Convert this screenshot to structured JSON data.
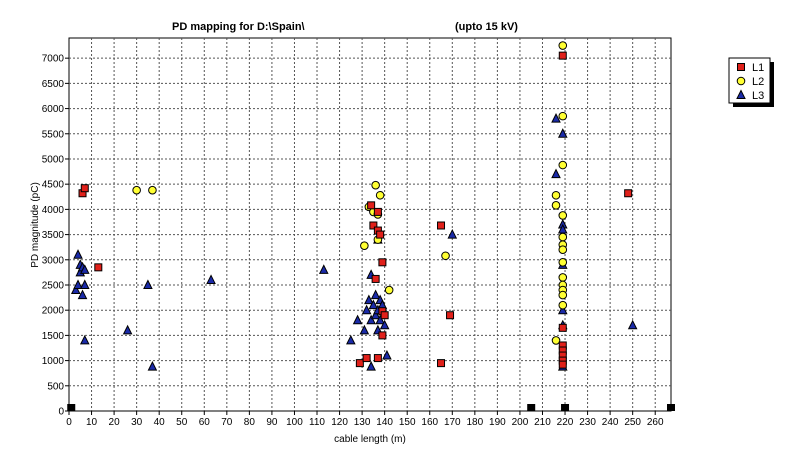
{
  "chart_data": {
    "type": "scatter",
    "title": "PD mapping for D:\\Spain\\",
    "subtitle": "(upto 15 kV)",
    "xlabel": "cable length (m)",
    "ylabel": "PD magnitude (pC)",
    "xlim": [
      0,
      267
    ],
    "ylim": [
      0,
      7400
    ],
    "xticks": [
      0,
      10,
      20,
      30,
      40,
      50,
      60,
      70,
      80,
      90,
      100,
      110,
      120,
      130,
      140,
      150,
      160,
      170,
      180,
      190,
      200,
      210,
      220,
      230,
      240,
      250,
      260
    ],
    "yticks": [
      0,
      500,
      1000,
      1500,
      2000,
      2500,
      3000,
      3500,
      4000,
      4500,
      5000,
      5500,
      6000,
      6500,
      7000
    ],
    "grid": true,
    "legend_position": "right",
    "colors": {
      "L1": "#e0201a",
      "L2": "#ffff33",
      "L3": "#1a2aa8",
      "position_markers": "#000000"
    },
    "series": [
      {
        "name": "L1",
        "marker": "square",
        "points": [
          [
            6,
            4320
          ],
          [
            7,
            4420
          ],
          [
            13,
            2850
          ],
          [
            129,
            950
          ],
          [
            132,
            1050
          ],
          [
            134,
            4080
          ],
          [
            135,
            3680
          ],
          [
            136,
            2620
          ],
          [
            137,
            1050
          ],
          [
            137,
            3950
          ],
          [
            137,
            3580
          ],
          [
            138,
            3500
          ],
          [
            139,
            2950
          ],
          [
            139,
            1980
          ],
          [
            139,
            1500
          ],
          [
            140,
            1900
          ],
          [
            165,
            3680
          ],
          [
            165,
            950
          ],
          [
            169,
            1900
          ],
          [
            219,
            7050
          ],
          [
            219,
            1650
          ],
          [
            219,
            1300
          ],
          [
            219,
            1200
          ],
          [
            219,
            1100
          ],
          [
            219,
            1000
          ],
          [
            219,
            920
          ],
          [
            248,
            4320
          ]
        ]
      },
      {
        "name": "L2",
        "marker": "circle",
        "points": [
          [
            30,
            4380
          ],
          [
            37,
            4380
          ],
          [
            131,
            3280
          ],
          [
            133,
            4050
          ],
          [
            135,
            3950
          ],
          [
            136,
            4480
          ],
          [
            137,
            3400
          ],
          [
            137,
            3900
          ],
          [
            138,
            4280
          ],
          [
            142,
            2400
          ],
          [
            167,
            3080
          ],
          [
            216,
            1400
          ],
          [
            216,
            4080
          ],
          [
            216,
            4280
          ],
          [
            219,
            7250
          ],
          [
            219,
            5850
          ],
          [
            219,
            4880
          ],
          [
            219,
            3880
          ],
          [
            219,
            3450
          ],
          [
            219,
            3300
          ],
          [
            219,
            3200
          ],
          [
            219,
            2950
          ],
          [
            219,
            2650
          ],
          [
            219,
            2500
          ],
          [
            219,
            2400
          ],
          [
            219,
            2300
          ],
          [
            219,
            2100
          ]
        ]
      },
      {
        "name": "L3",
        "marker": "triangle",
        "points": [
          [
            3,
            2400
          ],
          [
            4,
            2500
          ],
          [
            4,
            3100
          ],
          [
            5,
            2900
          ],
          [
            5,
            2750
          ],
          [
            6,
            2300
          ],
          [
            6,
            2850
          ],
          [
            7,
            2500
          ],
          [
            7,
            2800
          ],
          [
            7,
            1400
          ],
          [
            26,
            1600
          ],
          [
            35,
            2500
          ],
          [
            37,
            880
          ],
          [
            63,
            2600
          ],
          [
            113,
            2800
          ],
          [
            125,
            1400
          ],
          [
            128,
            1800
          ],
          [
            131,
            1600
          ],
          [
            132,
            2000
          ],
          [
            133,
            2200
          ],
          [
            134,
            880
          ],
          [
            134,
            2700
          ],
          [
            134,
            1800
          ],
          [
            135,
            2100
          ],
          [
            136,
            2300
          ],
          [
            136,
            1900
          ],
          [
            137,
            2000
          ],
          [
            137,
            1600
          ],
          [
            137,
            3400
          ],
          [
            138,
            2200
          ],
          [
            138,
            1800
          ],
          [
            139,
            2100
          ],
          [
            140,
            1700
          ],
          [
            141,
            1100
          ],
          [
            170,
            3500
          ],
          [
            216,
            4700
          ],
          [
            216,
            5800
          ],
          [
            219,
            5500
          ],
          [
            219,
            3700
          ],
          [
            219,
            3600
          ],
          [
            219,
            2900
          ],
          [
            219,
            2000
          ],
          [
            219,
            1700
          ],
          [
            219,
            880
          ],
          [
            250,
            1700
          ]
        ]
      }
    ],
    "position_markers": [
      1,
      205,
      220,
      267
    ]
  }
}
